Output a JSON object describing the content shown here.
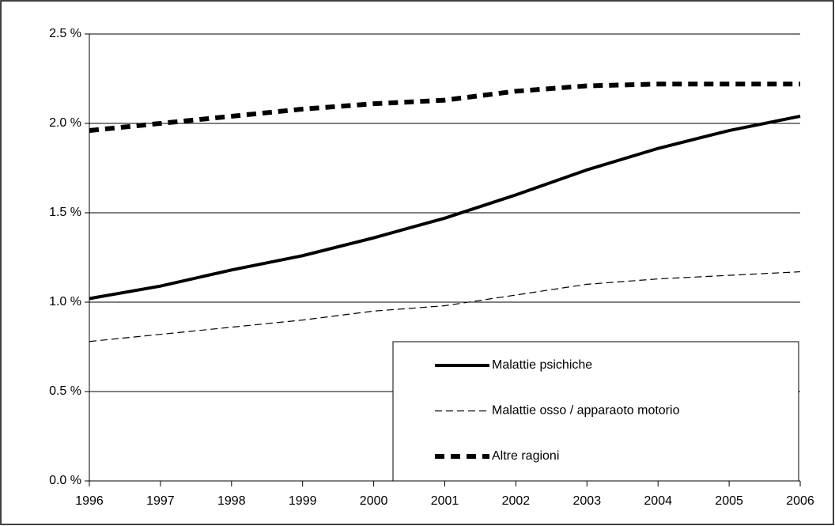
{
  "chart_data": {
    "type": "line",
    "x": [
      1996,
      1997,
      1998,
      1999,
      2000,
      2001,
      2002,
      2003,
      2004,
      2005,
      2006
    ],
    "xlim": [
      1996,
      2006
    ],
    "xticks": [
      1996,
      1997,
      1998,
      1999,
      2000,
      2001,
      2002,
      2003,
      2004,
      2005,
      2006
    ],
    "ylim": [
      0,
      2.5
    ],
    "yticks": [
      {
        "value": 0,
        "label": "0.0 %"
      },
      {
        "value": 0.5,
        "label": "0.5 %"
      },
      {
        "value": 1,
        "label": "1.0 %"
      },
      {
        "value": 1.5,
        "label": "1.5 %"
      },
      {
        "value": 2,
        "label": "2.0 %"
      },
      {
        "value": 2.5,
        "label": "2.5 %"
      }
    ],
    "grid": true,
    "legend": "lower right",
    "series": [
      {
        "name": "Malattie psichiche",
        "color": "#000000",
        "style": "solid",
        "values": [
          1.02,
          1.09,
          1.18,
          1.26,
          1.36,
          1.47,
          1.6,
          1.74,
          1.86,
          1.96,
          2.04
        ]
      },
      {
        "name": "Malattie osso / apparaoto motorio",
        "color": "#000000",
        "style": "thin-dashed",
        "values": [
          0.78,
          0.82,
          0.86,
          0.9,
          0.95,
          0.98,
          1.04,
          1.1,
          1.13,
          1.15,
          1.17
        ]
      },
      {
        "name": "Altre ragioni",
        "color": "#000000",
        "style": "thick-dashed",
        "values": [
          1.96,
          2.0,
          2.04,
          2.08,
          2.11,
          2.13,
          2.18,
          2.21,
          2.22,
          2.22,
          2.22
        ]
      }
    ]
  }
}
